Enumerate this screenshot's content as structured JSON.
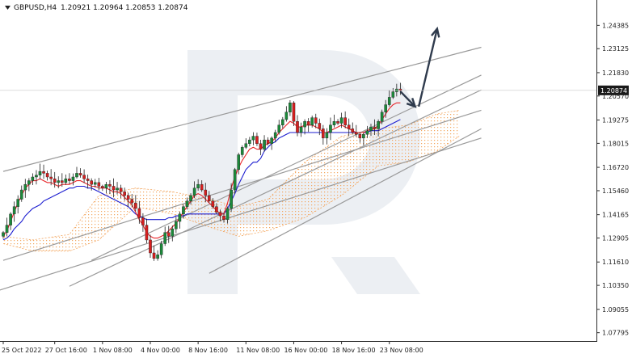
{
  "header": {
    "symbol": "GBPUSD,H4",
    "ohlc": "1.20921 1.20964 1.20853 1.20874"
  },
  "colors": {
    "bull": "#1b8a3a",
    "bear": "#d81e1e",
    "tenkan": "#e8262a",
    "kijun": "#1d1ed0",
    "cloud": "#f3a65f",
    "trendline": "#9a9a9a",
    "arrow": "#2f3b4d",
    "watermark": "#d5dbe6",
    "current_price_bg": "#1a1a1a"
  },
  "chart_data": {
    "type": "candlestick",
    "symbol": "GBPUSD",
    "timeframe": "H4",
    "y_ticks": [
      "1.24385",
      "1.23125",
      "1.21830",
      "1.20570",
      "1.19275",
      "1.18015",
      "1.16720",
      "1.15460",
      "1.14165",
      "1.12905",
      "1.11610",
      "1.10350",
      "1.09055",
      "1.07795"
    ],
    "ylim": [
      1.0765,
      1.2488
    ],
    "x_ticks": [
      "25 Oct 2022",
      "27 Oct 16:00",
      "1 Nov 08:00",
      "4 Nov 00:00",
      "8 Nov 16:00",
      "11 Nov 08:00",
      "16 Nov 00:00",
      "18 Nov 16:00",
      "23 Nov 08:00"
    ],
    "current_price": "1.20874",
    "closes": [
      1.132,
      1.136,
      1.142,
      1.146,
      1.15,
      1.155,
      1.158,
      1.16,
      1.162,
      1.163,
      1.165,
      1.164,
      1.162,
      1.161,
      1.159,
      1.16,
      1.159,
      1.161,
      1.16,
      1.162,
      1.164,
      1.163,
      1.161,
      1.16,
      1.158,
      1.159,
      1.157,
      1.156,
      1.158,
      1.157,
      1.155,
      1.156,
      1.154,
      1.152,
      1.15,
      1.148,
      1.145,
      1.14,
      1.136,
      1.128,
      1.121,
      1.118,
      1.12,
      1.126,
      1.132,
      1.13,
      1.134,
      1.138,
      1.142,
      1.146,
      1.149,
      1.152,
      1.156,
      1.158,
      1.155,
      1.152,
      1.149,
      1.146,
      1.143,
      1.141,
      1.139,
      1.145,
      1.155,
      1.166,
      1.174,
      1.178,
      1.18,
      1.182,
      1.184,
      1.18,
      1.177,
      1.182,
      1.18,
      1.183,
      1.186,
      1.19,
      1.193,
      1.197,
      1.202,
      1.192,
      1.186,
      1.189,
      1.192,
      1.19,
      1.194,
      1.191,
      1.188,
      1.183,
      1.186,
      1.19,
      1.192,
      1.191,
      1.194,
      1.19,
      1.188,
      1.186,
      1.185,
      1.183,
      1.185,
      1.187,
      1.189,
      1.188,
      1.192,
      1.197,
      1.201,
      1.205,
      1.208,
      1.2095,
      1.2087
    ],
    "tenkan": [
      1.13,
      1.133,
      1.138,
      1.143,
      1.148,
      1.152,
      1.156,
      1.158,
      1.16,
      1.16,
      1.161,
      1.16,
      1.159,
      1.159,
      1.158,
      1.157,
      1.158,
      1.158,
      1.158,
      1.159,
      1.16,
      1.16,
      1.159,
      1.158,
      1.157,
      1.157,
      1.156,
      1.156,
      1.156,
      1.155,
      1.154,
      1.154,
      1.153,
      1.151,
      1.149,
      1.147,
      1.143,
      1.139,
      1.136,
      1.132,
      1.13,
      1.129,
      1.129,
      1.13,
      1.131,
      1.133,
      1.135,
      1.137,
      1.14,
      1.143,
      1.146,
      1.149,
      1.152,
      1.153,
      1.152,
      1.15,
      1.148,
      1.146,
      1.144,
      1.142,
      1.142,
      1.148,
      1.156,
      1.162,
      1.167,
      1.171,
      1.174,
      1.177,
      1.178,
      1.177,
      1.177,
      1.179,
      1.18,
      1.181,
      1.183,
      1.186,
      1.188,
      1.19,
      1.192,
      1.191,
      1.189,
      1.189,
      1.19,
      1.19,
      1.19,
      1.189,
      1.188,
      1.186,
      1.186,
      1.187,
      1.188,
      1.189,
      1.19,
      1.189,
      1.188,
      1.187,
      1.186,
      1.186,
      1.186,
      1.187,
      1.188,
      1.188,
      1.19,
      1.193,
      1.196,
      1.199,
      1.201,
      1.202,
      1.202
    ],
    "kijun": [
      1.128,
      1.129,
      1.131,
      1.134,
      1.136,
      1.138,
      1.141,
      1.143,
      1.145,
      1.146,
      1.147,
      1.149,
      1.15,
      1.151,
      1.152,
      1.153,
      1.154,
      1.155,
      1.156,
      1.156,
      1.157,
      1.157,
      1.157,
      1.156,
      1.156,
      1.155,
      1.154,
      1.153,
      1.152,
      1.151,
      1.15,
      1.149,
      1.148,
      1.147,
      1.146,
      1.144,
      1.142,
      1.141,
      1.14,
      1.139,
      1.139,
      1.139,
      1.139,
      1.139,
      1.139,
      1.14,
      1.14,
      1.141,
      1.141,
      1.141,
      1.142,
      1.142,
      1.142,
      1.142,
      1.142,
      1.142,
      1.142,
      1.142,
      1.142,
      1.142,
      1.142,
      1.145,
      1.149,
      1.153,
      1.158,
      1.162,
      1.166,
      1.168,
      1.17,
      1.17,
      1.172,
      1.176,
      1.178,
      1.18,
      1.181,
      1.183,
      1.184,
      1.185,
      1.186,
      1.186,
      1.186,
      1.186,
      1.186,
      1.186,
      1.186,
      1.186,
      1.186,
      1.186,
      1.186,
      1.186,
      1.186,
      1.186,
      1.186,
      1.186,
      1.186,
      1.186,
      1.186,
      1.186,
      1.186,
      1.186,
      1.187,
      1.187,
      1.187,
      1.188,
      1.189,
      1.19,
      1.191,
      1.192,
      1.193
    ],
    "cloud": [
      {
        "i": 0,
        "a": 1.13,
        "b": 1.126
      },
      {
        "i": 8,
        "a": 1.128,
        "b": 1.122
      },
      {
        "i": 18,
        "a": 1.131,
        "b": 1.122
      },
      {
        "i": 26,
        "a": 1.152,
        "b": 1.128
      },
      {
        "i": 36,
        "a": 1.156,
        "b": 1.146
      },
      {
        "i": 46,
        "a": 1.154,
        "b": 1.142
      },
      {
        "i": 56,
        "a": 1.15,
        "b": 1.135
      },
      {
        "i": 64,
        "a": 1.146,
        "b": 1.13
      },
      {
        "i": 72,
        "a": 1.15,
        "b": 1.133
      },
      {
        "i": 82,
        "a": 1.17,
        "b": 1.14
      },
      {
        "i": 92,
        "a": 1.184,
        "b": 1.152
      },
      {
        "i": 102,
        "a": 1.188,
        "b": 1.168
      },
      {
        "i": 110,
        "a": 1.19,
        "b": 1.17
      },
      {
        "i": 118,
        "a": 1.196,
        "b": 1.176
      },
      {
        "i": 124,
        "a": 1.198,
        "b": 1.184
      }
    ],
    "trendlines": [
      {
        "from": [
          0,
          1.165
        ],
        "to": [
          130,
          1.232
        ]
      },
      {
        "from": [
          0,
          1.117
        ],
        "to": [
          130,
          1.198
        ]
      },
      {
        "from": [
          24,
          1.117
        ],
        "to": [
          130,
          1.217
        ]
      },
      {
        "from": [
          18,
          1.103
        ],
        "to": [
          130,
          1.209
        ]
      },
      {
        "from": [
          -12,
          1.094
        ],
        "to": [
          130,
          1.183
        ]
      },
      {
        "from": [
          56,
          1.11
        ],
        "to": [
          130,
          1.188
        ]
      }
    ],
    "forecast": [
      {
        "from": [
          108,
          1.2082
        ],
        "to": [
          112,
          1.2
        ]
      },
      {
        "from": [
          113,
          1.2
        ],
        "to": [
          118,
          1.242
        ]
      }
    ]
  }
}
